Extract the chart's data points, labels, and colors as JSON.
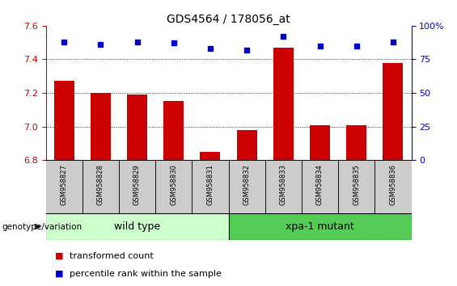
{
  "title": "GDS4564 / 178056_at",
  "samples": [
    "GSM958827",
    "GSM958828",
    "GSM958829",
    "GSM958830",
    "GSM958831",
    "GSM958832",
    "GSM958833",
    "GSM958834",
    "GSM958835",
    "GSM958836"
  ],
  "transformed_count": [
    7.27,
    7.2,
    7.19,
    7.15,
    6.85,
    6.98,
    7.47,
    7.01,
    7.01,
    7.38
  ],
  "percentile_rank": [
    88,
    86,
    88,
    87,
    83,
    82,
    92,
    85,
    85,
    88
  ],
  "ylim_left": [
    6.8,
    7.6
  ],
  "ylim_right": [
    0,
    100
  ],
  "yticks_left": [
    6.8,
    7.0,
    7.2,
    7.4,
    7.6
  ],
  "yticks_right": [
    0,
    25,
    50,
    75,
    100
  ],
  "left_color": "#cc0000",
  "right_color": "#0000cc",
  "bar_color": "#cc0000",
  "dot_color": "#0000cc",
  "grid_lines": [
    7.0,
    7.2,
    7.4
  ],
  "groups": [
    {
      "label": "wild type",
      "start": 0,
      "end": 4,
      "color": "#ccffcc"
    },
    {
      "label": "xpa-1 mutant",
      "start": 5,
      "end": 9,
      "color": "#55cc55"
    }
  ],
  "genotype_label": "genotype/variation",
  "legend_items": [
    {
      "color": "#cc0000",
      "label": "transformed count"
    },
    {
      "color": "#0000cc",
      "label": "percentile rank within the sample"
    }
  ],
  "tick_area_color": "#cccccc",
  "title_fontsize": 10,
  "tick_fontsize": 8,
  "sample_fontsize": 6,
  "group_fontsize": 9,
  "legend_fontsize": 8
}
